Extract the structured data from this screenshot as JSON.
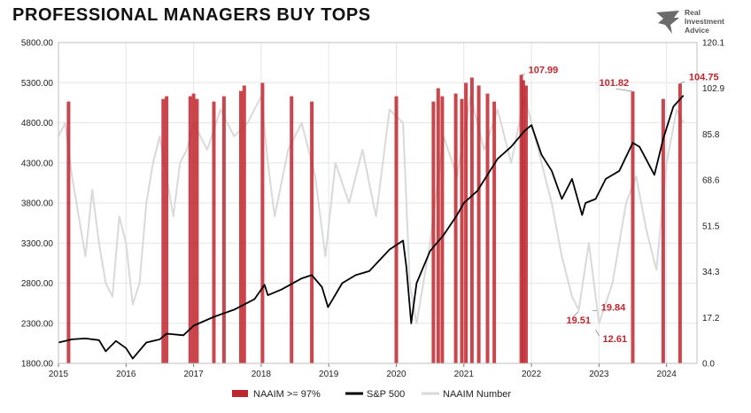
{
  "title": "PROFESSIONAL MANAGERS BUY TOPS",
  "brand": {
    "line1": "Real",
    "line2": "Investment",
    "line3": "Advice"
  },
  "colors": {
    "naaim_high": "#c0262d",
    "sp500": "#000000",
    "naaim": "#d9d9d9",
    "grid": "#e6e6e6"
  },
  "chart_data": {
    "type": "line",
    "x_ticks": [
      "2015",
      "2016",
      "2017",
      "2018",
      "2019",
      "2020",
      "2021",
      "2022",
      "2023",
      "2024"
    ],
    "x_range": [
      2015.0,
      2024.45
    ],
    "y_left": {
      "range": [
        1800,
        5800
      ],
      "ticks": [
        "1800.00",
        "2300.00",
        "2800.00",
        "3300.00",
        "3800.00",
        "4300.00",
        "4800.00",
        "5300.00",
        "5800.00"
      ]
    },
    "y_right": {
      "range": [
        0,
        120.1
      ],
      "ticks": [
        "0.0",
        "17.2",
        "34.3",
        "51.5",
        "68.6",
        "85.8",
        "102.9",
        "120.1"
      ]
    },
    "legend": [
      "NAAIM >= 97%",
      "S&P 500",
      "NAAIM Number"
    ],
    "annotations": [
      {
        "label": "107.99",
        "x": 2021.85,
        "y": 108.0
      },
      {
        "label": "101.82",
        "x": 2023.5,
        "y": 101.8
      },
      {
        "label": "104.75",
        "x": 2024.2,
        "y": 104.75
      },
      {
        "label": "19.51",
        "x": 2022.7,
        "y": 19.5
      },
      {
        "label": "19.84",
        "x": 2022.9,
        "y": 19.8
      },
      {
        "label": "12.61",
        "x": 2022.95,
        "y": 12.6
      }
    ],
    "series": [
      {
        "name": "S&P 500",
        "axis": "left",
        "x": [
          2015.0,
          2015.2,
          2015.4,
          2015.6,
          2015.7,
          2015.85,
          2016.0,
          2016.1,
          2016.3,
          2016.5,
          2016.6,
          2016.85,
          2017.0,
          2017.3,
          2017.6,
          2017.9,
          2018.05,
          2018.1,
          2018.3,
          2018.6,
          2018.75,
          2018.9,
          2018.99,
          2019.2,
          2019.4,
          2019.6,
          2019.9,
          2020.1,
          2020.15,
          2020.22,
          2020.3,
          2020.5,
          2020.7,
          2020.9,
          2021.0,
          2021.2,
          2021.5,
          2021.7,
          2021.9,
          2022.0,
          2022.15,
          2022.3,
          2022.45,
          2022.6,
          2022.75,
          2022.8,
          2022.95,
          2023.1,
          2023.3,
          2023.5,
          2023.6,
          2023.82,
          2023.95,
          2024.1,
          2024.25
        ],
        "values": [
          2060,
          2100,
          2110,
          2090,
          1950,
          2080,
          1990,
          1860,
          2060,
          2100,
          2170,
          2150,
          2270,
          2380,
          2470,
          2600,
          2780,
          2650,
          2720,
          2860,
          2900,
          2750,
          2500,
          2800,
          2900,
          2950,
          3220,
          3330,
          3000,
          2300,
          2800,
          3200,
          3400,
          3650,
          3800,
          3950,
          4350,
          4500,
          4700,
          4770,
          4400,
          4200,
          3850,
          4100,
          3650,
          3800,
          3850,
          4100,
          4200,
          4550,
          4500,
          4150,
          4600,
          5000,
          5140
        ]
      },
      {
        "name": "NAAIM Number",
        "axis": "right",
        "x": [
          2015.0,
          2015.1,
          2015.2,
          2015.3,
          2015.4,
          2015.5,
          2015.6,
          2015.7,
          2015.8,
          2015.9,
          2016.0,
          2016.1,
          2016.2,
          2016.3,
          2016.4,
          2016.5,
          2016.6,
          2016.7,
          2016.8,
          2016.9,
          2017.0,
          2017.2,
          2017.4,
          2017.6,
          2017.8,
          2018.0,
          2018.1,
          2018.2,
          2018.4,
          2018.6,
          2018.8,
          2018.95,
          2019.1,
          2019.3,
          2019.5,
          2019.7,
          2019.9,
          2020.1,
          2020.2,
          2020.3,
          2020.5,
          2020.7,
          2020.9,
          2021.1,
          2021.3,
          2021.5,
          2021.7,
          2021.9,
          2022.1,
          2022.3,
          2022.45,
          2022.6,
          2022.7,
          2022.85,
          2023.0,
          2023.2,
          2023.4,
          2023.55,
          2023.7,
          2023.85,
          2024.0,
          2024.15,
          2024.25
        ],
        "values": [
          85,
          90,
          70,
          55,
          40,
          65,
          45,
          30,
          25,
          55,
          45,
          22,
          30,
          60,
          75,
          85,
          70,
          55,
          75,
          80,
          90,
          80,
          95,
          85,
          90,
          100,
          75,
          55,
          80,
          90,
          70,
          40,
          75,
          60,
          80,
          55,
          95,
          90,
          30,
          15,
          45,
          85,
          70,
          100,
          80,
          95,
          75,
          100,
          80,
          60,
          40,
          25,
          20,
          45,
          15,
          30,
          60,
          70,
          50,
          35,
          75,
          95,
          90
        ]
      },
      {
        "name": "NAAIM >= 97%",
        "axis": "right",
        "x": [
          2015.15,
          2016.55,
          2016.6,
          2016.95,
          2017.0,
          2017.05,
          2017.3,
          2017.45,
          2017.7,
          2017.75,
          2018.02,
          2018.45,
          2018.75,
          2020.0,
          2020.55,
          2020.62,
          2020.68,
          2020.88,
          2020.97,
          2021.03,
          2021.12,
          2021.22,
          2021.35,
          2021.45,
          2021.85,
          2021.88,
          2021.92,
          2023.5,
          2023.95,
          2024.2
        ],
        "values": [
          98,
          99,
          100,
          100,
          101,
          99,
          98,
          100,
          102,
          104,
          105,
          100,
          98,
          100,
          98,
          103,
          100,
          101,
          99,
          105,
          107,
          104,
          101,
          98,
          108,
          106,
          104,
          101.8,
          99,
          104.75
        ]
      }
    ]
  }
}
